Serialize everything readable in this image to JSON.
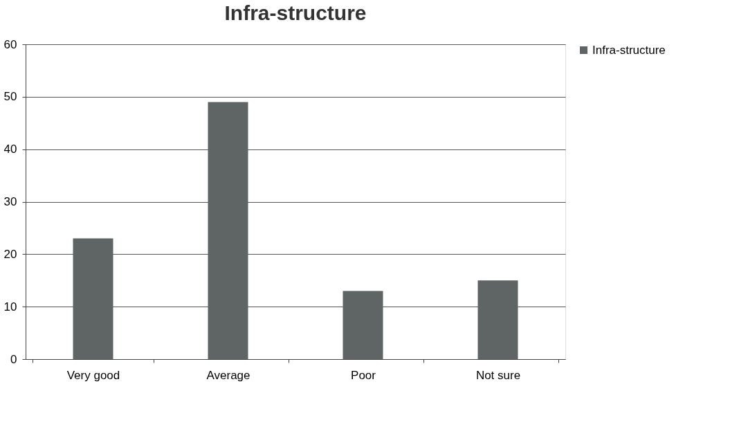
{
  "chart_data": {
    "type": "bar",
    "title": "Infra-structure",
    "categories": [
      "Very good",
      "Average",
      "Poor",
      "Not sure"
    ],
    "series": [
      {
        "name": "Infra-structure",
        "color": "#5f6464",
        "values": [
          23,
          49,
          13,
          15
        ]
      }
    ],
    "ylim": [
      0,
      60
    ],
    "yticks": [
      0,
      10,
      20,
      30,
      40,
      50,
      60
    ],
    "grid": "y",
    "legend": "right"
  }
}
